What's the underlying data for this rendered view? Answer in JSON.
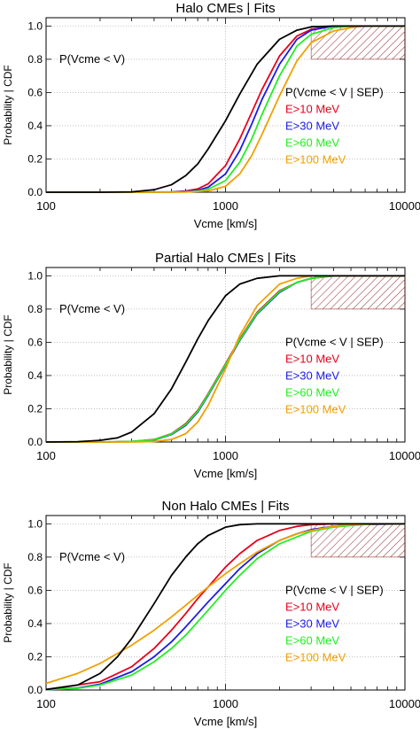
{
  "colors": {
    "unconditional": "#000000",
    "E>10 MeV": "#e8001c",
    "E>30 MeV": "#1b1be6",
    "E>60 MeV": "#22ee22",
    "E>100 MeV": "#f0a000",
    "hatch": "#8b1a1a",
    "grid": "#9a9a9a"
  },
  "chart_data": [
    {
      "type": "line",
      "title": "Halo CMEs | Fits",
      "xlabel": "Vcme [km/s]",
      "ylabel": "Probability | CDF",
      "xscale": "log",
      "xlim": [
        100,
        10000
      ],
      "ylim": [
        0,
        1.05
      ],
      "xticks": [
        100,
        1000,
        10000
      ],
      "xtick_labels": [
        "100",
        "1000",
        "10000"
      ],
      "yticks": [
        0.0,
        0.2,
        0.4,
        0.6,
        0.8,
        1.0
      ],
      "ytick_labels": [
        "0.0",
        "0.2",
        "0.4",
        "0.6",
        "0.8",
        "1.0"
      ],
      "grid": true,
      "annotations": {
        "unconditional": "P(Vcme < V)",
        "conditional": "P(Vcme < V | SEP)"
      },
      "shaded_region": {
        "x": [
          3000,
          10000
        ],
        "y": [
          0.8,
          1.0
        ]
      },
      "series": [
        {
          "name": "",
          "color_key": "unconditional",
          "x": [
            100,
            200,
            300,
            400,
            500,
            600,
            700,
            800,
            1000,
            1200,
            1500,
            2000,
            2500,
            3000,
            4000,
            5000,
            10000
          ],
          "y": [
            0,
            0,
            0.002,
            0.015,
            0.045,
            0.1,
            0.17,
            0.26,
            0.43,
            0.59,
            0.77,
            0.92,
            0.975,
            0.995,
            1.0,
            1.0,
            1.0
          ]
        },
        {
          "name": "E>10 MeV",
          "color_key": "E>10 MeV",
          "x": [
            100,
            300,
            500,
            600,
            700,
            800,
            1000,
            1200,
            1400,
            1600,
            2000,
            2500,
            3000,
            4000,
            10000
          ],
          "y": [
            0,
            0,
            0.002,
            0.007,
            0.02,
            0.05,
            0.16,
            0.32,
            0.48,
            0.62,
            0.82,
            0.94,
            0.98,
            1.0,
            1.0
          ]
        },
        {
          "name": "E>30 MeV",
          "color_key": "E>30 MeV",
          "x": [
            100,
            300,
            500,
            600,
            700,
            800,
            1000,
            1200,
            1400,
            1600,
            2000,
            2500,
            3000,
            4000,
            10000
          ],
          "y": [
            0,
            0,
            0.001,
            0.004,
            0.012,
            0.03,
            0.11,
            0.25,
            0.41,
            0.56,
            0.77,
            0.92,
            0.975,
            1.0,
            1.0
          ]
        },
        {
          "name": "E>60 MeV",
          "color_key": "E>60 MeV",
          "x": [
            100,
            300,
            600,
            700,
            800,
            1000,
            1200,
            1400,
            1600,
            2000,
            2500,
            3000,
            4000,
            5000,
            10000
          ],
          "y": [
            0,
            0,
            0.002,
            0.007,
            0.018,
            0.07,
            0.18,
            0.32,
            0.47,
            0.7,
            0.88,
            0.95,
            0.99,
            1.0,
            1.0
          ]
        },
        {
          "name": "E>100 MeV",
          "color_key": "E>100 MeV",
          "x": [
            100,
            300,
            600,
            800,
            1000,
            1200,
            1400,
            1600,
            2000,
            2500,
            3000,
            4000,
            5000,
            6000,
            10000
          ],
          "y": [
            0,
            0,
            0.001,
            0.008,
            0.035,
            0.11,
            0.22,
            0.35,
            0.58,
            0.79,
            0.9,
            0.97,
            0.99,
            1.0,
            1.0
          ]
        }
      ]
    },
    {
      "type": "line",
      "title": "Partial Halo CMEs | Fits",
      "xlabel": "Vcme [km/s]",
      "ylabel": "Probability | CDF",
      "xscale": "log",
      "xlim": [
        100,
        10000
      ],
      "ylim": [
        0,
        1.05
      ],
      "xticks": [
        100,
        1000,
        10000
      ],
      "xtick_labels": [
        "100",
        "1000",
        "10000"
      ],
      "yticks": [
        0.0,
        0.2,
        0.4,
        0.6,
        0.8,
        1.0
      ],
      "ytick_labels": [
        "0.0",
        "0.2",
        "0.4",
        "0.6",
        "0.8",
        "1.0"
      ],
      "grid": true,
      "annotations": {
        "unconditional": "P(Vcme < V)",
        "conditional": "P(Vcme < V | SEP)"
      },
      "shaded_region": {
        "x": [
          3000,
          10000
        ],
        "y": [
          0.8,
          1.0
        ]
      },
      "series": [
        {
          "name": "",
          "color_key": "unconditional",
          "x": [
            100,
            150,
            200,
            250,
            300,
            400,
            500,
            600,
            700,
            800,
            1000,
            1200,
            1500,
            2000,
            2500,
            3000,
            10000
          ],
          "y": [
            0,
            0.002,
            0.01,
            0.025,
            0.06,
            0.17,
            0.32,
            0.48,
            0.62,
            0.73,
            0.88,
            0.95,
            0.985,
            1.0,
            1.0,
            1.0,
            1.0
          ]
        },
        {
          "name": "E>10 MeV",
          "color_key": "E>10 MeV",
          "x": [
            100,
            200,
            300,
            400,
            500,
            600,
            700,
            800,
            1000,
            1200,
            1500,
            2000,
            2500,
            3000,
            4000,
            5000,
            10000
          ],
          "y": [
            0,
            0,
            0.003,
            0.015,
            0.05,
            0.11,
            0.19,
            0.29,
            0.47,
            0.62,
            0.78,
            0.91,
            0.96,
            0.985,
            1.0,
            1.0,
            1.0
          ]
        },
        {
          "name": "E>30 MeV",
          "color_key": "E>30 MeV",
          "x": [
            100,
            200,
            300,
            400,
            500,
            600,
            700,
            800,
            1000,
            1200,
            1500,
            2000,
            2500,
            3000,
            4000,
            5000,
            10000
          ],
          "y": [
            0,
            0,
            0.002,
            0.012,
            0.045,
            0.1,
            0.18,
            0.28,
            0.46,
            0.61,
            0.77,
            0.9,
            0.96,
            0.985,
            1.0,
            1.0,
            1.0
          ]
        },
        {
          "name": "E>60 MeV",
          "color_key": "E>60 MeV",
          "x": [
            100,
            200,
            300,
            400,
            500,
            600,
            700,
            800,
            1000,
            1200,
            1500,
            2000,
            2500,
            3000,
            4000,
            5000,
            10000
          ],
          "y": [
            0,
            0,
            0.003,
            0.014,
            0.048,
            0.105,
            0.185,
            0.285,
            0.465,
            0.615,
            0.775,
            0.905,
            0.96,
            0.985,
            1.0,
            1.0,
            1.0
          ]
        },
        {
          "name": "E>100 MeV",
          "color_key": "E>100 MeV",
          "x": [
            100,
            300,
            400,
            500,
            600,
            700,
            800,
            1000,
            1200,
            1500,
            2000,
            2500,
            3000,
            4000,
            10000
          ],
          "y": [
            0,
            0,
            0.003,
            0.015,
            0.05,
            0.12,
            0.22,
            0.44,
            0.64,
            0.82,
            0.95,
            0.985,
            1.0,
            1.0,
            1.0
          ]
        }
      ]
    },
    {
      "type": "line",
      "title": "Non Halo CMEs | Fits",
      "xlabel": "Vcme [km/s]",
      "ylabel": "Probability | CDF",
      "xscale": "log",
      "xlim": [
        100,
        10000
      ],
      "ylim": [
        0,
        1.05
      ],
      "xticks": [
        100,
        1000,
        10000
      ],
      "xtick_labels": [
        "100",
        "1000",
        "10000"
      ],
      "yticks": [
        0.0,
        0.2,
        0.4,
        0.6,
        0.8,
        1.0
      ],
      "ytick_labels": [
        "0.0",
        "0.2",
        "0.4",
        "0.6",
        "0.8",
        "1.0"
      ],
      "grid": true,
      "annotations": {
        "unconditional": "P(Vcme < V)",
        "conditional": "P(Vcme < V | SEP)"
      },
      "shaded_region": {
        "x": [
          3000,
          10000
        ],
        "y": [
          0.8,
          1.0
        ]
      },
      "series": [
        {
          "name": "",
          "color_key": "unconditional",
          "x": [
            100,
            150,
            200,
            250,
            300,
            400,
            500,
            600,
            700,
            800,
            1000,
            1200,
            1500,
            2000,
            10000
          ],
          "y": [
            0.003,
            0.03,
            0.1,
            0.2,
            0.31,
            0.52,
            0.69,
            0.8,
            0.88,
            0.93,
            0.98,
            0.995,
            1.0,
            1.0,
            1.0
          ]
        },
        {
          "name": "E>10 MeV",
          "color_key": "E>10 MeV",
          "x": [
            100,
            200,
            300,
            400,
            500,
            600,
            700,
            800,
            1000,
            1200,
            1500,
            2000,
            2500,
            3000,
            4000,
            5000,
            10000
          ],
          "y": [
            0.003,
            0.05,
            0.14,
            0.25,
            0.36,
            0.46,
            0.55,
            0.62,
            0.74,
            0.82,
            0.9,
            0.96,
            0.985,
            0.995,
            1.0,
            1.0,
            1.0
          ]
        },
        {
          "name": "E>30 MeV",
          "color_key": "E>30 MeV",
          "x": [
            100,
            150,
            200,
            300,
            400,
            500,
            600,
            700,
            800,
            1000,
            1200,
            1500,
            2000,
            2500,
            3000,
            4000,
            5000,
            10000
          ],
          "y": [
            0.002,
            0.012,
            0.035,
            0.11,
            0.2,
            0.29,
            0.38,
            0.46,
            0.53,
            0.64,
            0.73,
            0.82,
            0.9,
            0.94,
            0.965,
            0.985,
            0.995,
            1.0
          ]
        },
        {
          "name": "E>60 MeV",
          "color_key": "E>60 MeV",
          "x": [
            100,
            150,
            200,
            300,
            400,
            500,
            600,
            700,
            800,
            1000,
            1200,
            1500,
            2000,
            3000,
            4000,
            5000,
            7000,
            10000
          ],
          "y": [
            0.002,
            0.01,
            0.03,
            0.09,
            0.17,
            0.25,
            0.33,
            0.41,
            0.48,
            0.6,
            0.69,
            0.79,
            0.88,
            0.955,
            0.98,
            0.99,
            1.0,
            1.0
          ]
        },
        {
          "name": "E>100 MeV",
          "color_key": "E>100 MeV",
          "x": [
            100,
            150,
            200,
            250,
            300,
            400,
            500,
            600,
            700,
            800,
            1000,
            1200,
            1500,
            2000,
            2500,
            3000,
            4000,
            5000,
            7000,
            10000
          ],
          "y": [
            0.04,
            0.1,
            0.16,
            0.22,
            0.27,
            0.36,
            0.44,
            0.51,
            0.57,
            0.62,
            0.7,
            0.76,
            0.83,
            0.9,
            0.94,
            0.96,
            0.985,
            0.995,
            1.0,
            1.0
          ]
        }
      ]
    }
  ]
}
